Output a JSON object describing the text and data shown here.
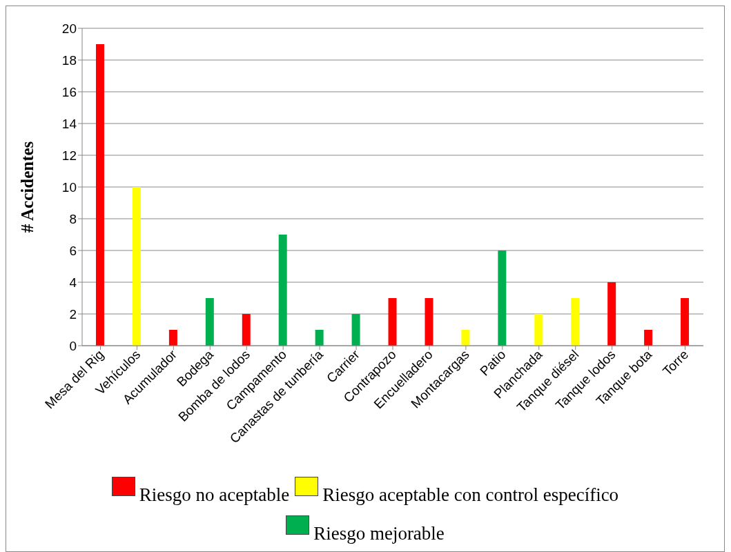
{
  "chart_data": {
    "type": "bar",
    "ylabel": "# Accidentes",
    "categories": [
      "Mesa del Rig",
      "Vehículos",
      "Acumulador",
      "Bodega",
      "Bomba de lodos",
      "Campamento",
      "Canastas de tunbería",
      "Carrier",
      "Contrapozo",
      "Encuelladero",
      "Montacargas",
      "Patio",
      "Planchada",
      "Tanque diésel",
      "Tanque lodos",
      "Tanque bota",
      "Torre"
    ],
    "series": [
      {
        "name": "Riesgo no aceptable",
        "color": "#ff0000",
        "values": [
          19,
          null,
          1,
          null,
          2,
          null,
          null,
          null,
          3,
          3,
          null,
          null,
          null,
          null,
          4,
          1,
          3
        ]
      },
      {
        "name": "Riesgo aceptable con control específico",
        "color": "#ffff00",
        "values": [
          null,
          10,
          null,
          null,
          null,
          null,
          null,
          null,
          null,
          null,
          1,
          null,
          2,
          3,
          null,
          null,
          null
        ]
      },
      {
        "name": "Riesgo mejorable",
        "color": "#00b050",
        "values": [
          null,
          null,
          null,
          3,
          null,
          7,
          1,
          2,
          null,
          null,
          null,
          6,
          null,
          null,
          null,
          null,
          null
        ]
      }
    ],
    "stacked": true,
    "ylim": [
      0,
      20
    ],
    "yticks": [
      0,
      2,
      4,
      6,
      8,
      10,
      12,
      14,
      16,
      18,
      20
    ],
    "grid": "y",
    "legend": "bottom"
  }
}
